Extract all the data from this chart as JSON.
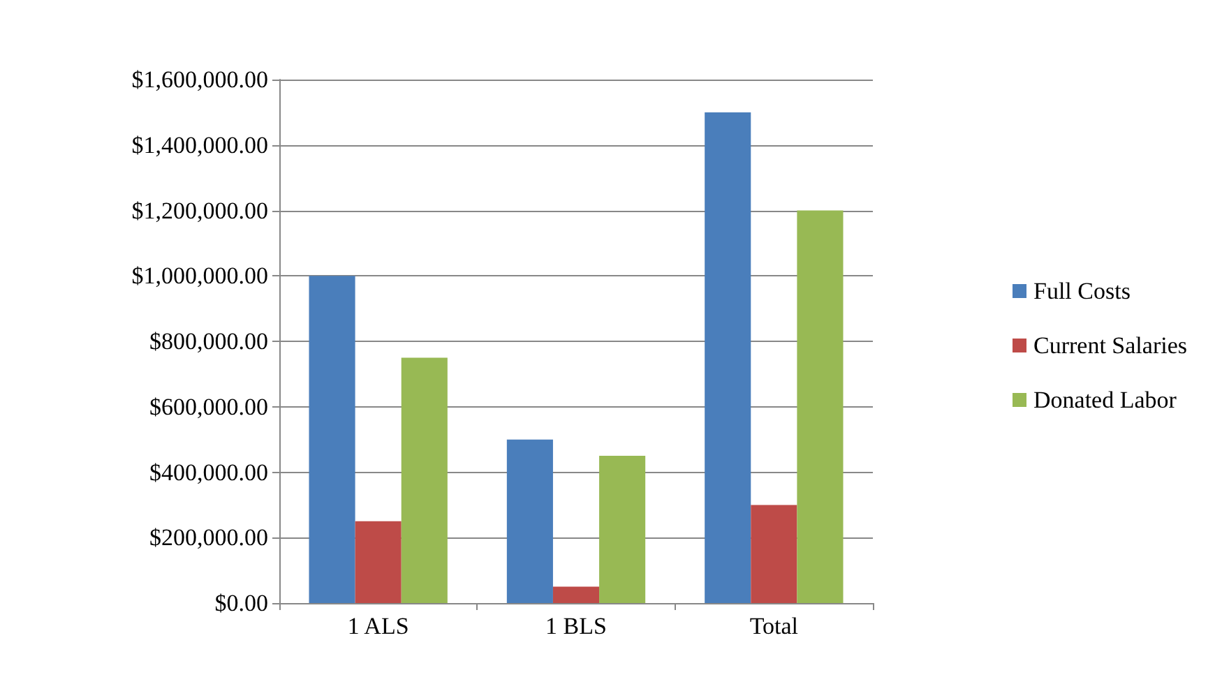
{
  "chart_data": {
    "type": "bar",
    "categories": [
      "1 ALS",
      "1 BLS",
      "Total"
    ],
    "series": [
      {
        "name": "Full Costs",
        "color": "#4a7ebb",
        "values": [
          1000000,
          500000,
          1500000
        ]
      },
      {
        "name": "Current Salaries",
        "color": "#be4b48",
        "values": [
          250000,
          50000,
          300000
        ]
      },
      {
        "name": "Donated Labor",
        "color": "#98b954",
        "values": [
          750000,
          450000,
          1200000
        ]
      }
    ],
    "ylim": [
      0,
      1600000
    ],
    "yticks": [
      {
        "value": 0,
        "label": "$0.00"
      },
      {
        "value": 200000,
        "label": "$200,000.00"
      },
      {
        "value": 400000,
        "label": "$400,000.00"
      },
      {
        "value": 600000,
        "label": "$600,000.00"
      },
      {
        "value": 800000,
        "label": "$800,000.00"
      },
      {
        "value": 1000000,
        "label": "$1,000,000.00"
      },
      {
        "value": 1200000,
        "label": "$1,200,000.00"
      },
      {
        "value": 1400000,
        "label": "$1,400,000.00"
      },
      {
        "value": 1600000,
        "label": "$1,600,000.00"
      }
    ],
    "grid": "y",
    "legend": "right"
  }
}
